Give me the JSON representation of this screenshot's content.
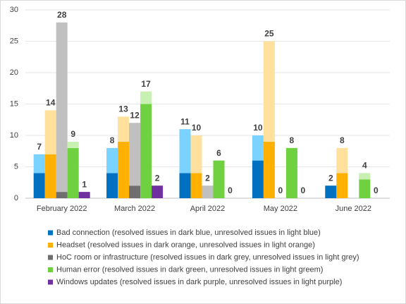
{
  "chart_data": {
    "type": "stacked-grouped-bar",
    "categories": [
      "February 2022",
      "March 2022",
      "April 2022",
      "May 2022",
      "June 2022"
    ],
    "ylim": [
      0,
      30
    ],
    "yticks": [
      0,
      5,
      10,
      15,
      20,
      25,
      30
    ],
    "grid": true,
    "legend": "bottom",
    "series": [
      {
        "name": "Bad connection (resolved issues in dark blue, unresolved issues in light blue)",
        "color": "#0070c0",
        "color_unresolved": "#79d2ff",
        "resolved": [
          4,
          4,
          4,
          6,
          2
        ],
        "unresolved": [
          3,
          4,
          7,
          4,
          0
        ],
        "totals": [
          7,
          8,
          11,
          10,
          2
        ]
      },
      {
        "name": "Headset (resolved issues in dark orange, unresolved issues in light orange)",
        "color": "#ffb000",
        "color_unresolved": "#ffe09c",
        "resolved": [
          7,
          9,
          4,
          9,
          4
        ],
        "unresolved": [
          7,
          4,
          6,
          16,
          4
        ],
        "totals": [
          14,
          13,
          10,
          25,
          8
        ]
      },
      {
        "name": "HoC room or infrastructure (resolved issues in dark grey, unresolved issues in light grey)",
        "color": "#6e6e6e",
        "color_unresolved": "#c0c0c0",
        "resolved": [
          1,
          2,
          0,
          0,
          0
        ],
        "unresolved": [
          27,
          10,
          2,
          0,
          0
        ],
        "totals": [
          28,
          12,
          2,
          0,
          null
        ]
      },
      {
        "name": "Human error (resolved issues in dark green, unresolved issues in light greem)",
        "color": "#6fd040",
        "color_unresolved": "#c8f0b2",
        "resolved": [
          8,
          15,
          6,
          8,
          3
        ],
        "unresolved": [
          1,
          2,
          0,
          0,
          1
        ],
        "totals": [
          9,
          17,
          6,
          8,
          4
        ]
      },
      {
        "name": "Windows updates (resolved issues in dark purple, unresolved issues in light purple)",
        "color": "#7030a0",
        "color_unresolved": "#c9a6e4",
        "resolved": [
          1,
          2,
          0,
          0,
          0
        ],
        "unresolved": [
          0,
          0,
          0,
          0,
          0
        ],
        "totals": [
          1,
          2,
          0,
          0,
          0
        ]
      }
    ]
  }
}
